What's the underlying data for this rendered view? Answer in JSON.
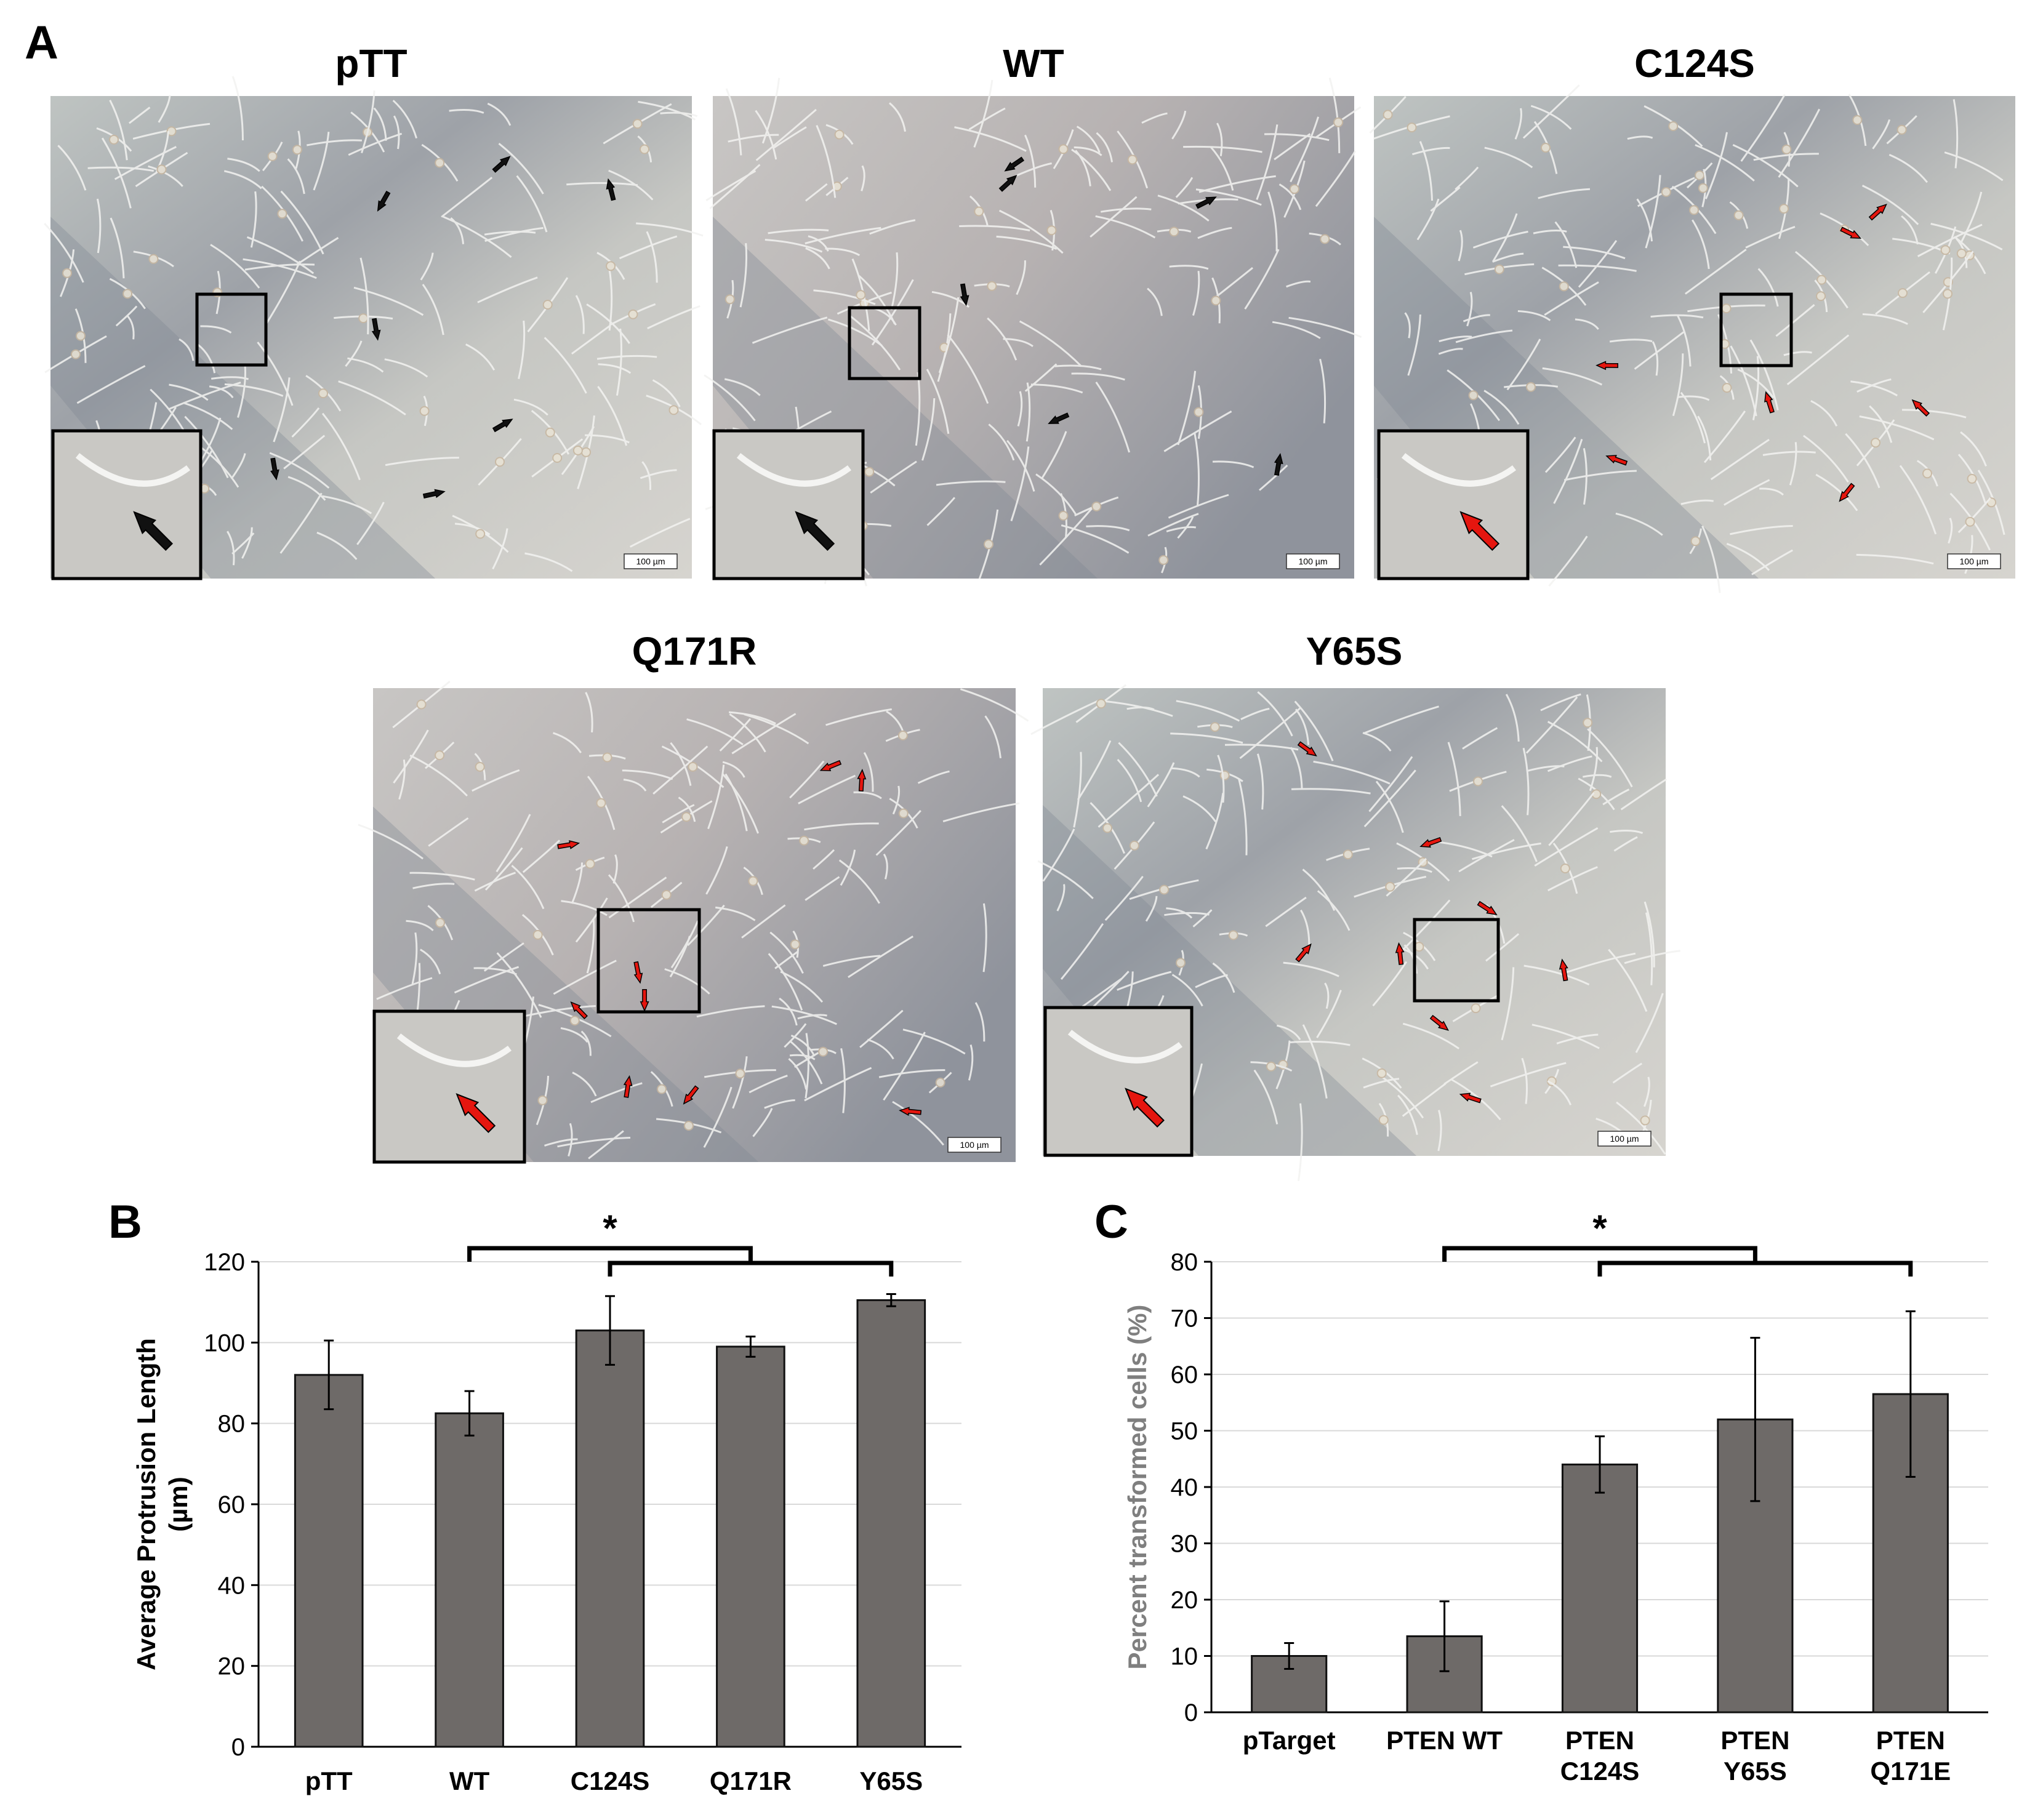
{
  "panel_labels": {
    "a": "A",
    "b": "B",
    "c": "C"
  },
  "colors": {
    "bar_fill": "#6e6a68",
    "bar_stroke": "#111111",
    "grid": "#d9d9d9",
    "black_arrow": "#111111",
    "red_arrow": "#e5160f",
    "micro_bg_light": "#c9cbc8",
    "micro_bg_dark": "#8d9097",
    "axis_title_c": "#7f7f7f"
  },
  "micrographs": [
    {
      "title": "pTT",
      "scale_bar": "100 µm",
      "arrow_color": "black",
      "arrow_count": 7
    },
    {
      "title": "WT",
      "scale_bar": "100 µm",
      "arrow_color": "black",
      "arrow_count": 6
    },
    {
      "title": "C124S",
      "scale_bar": "100 µm",
      "arrow_color": "red",
      "arrow_count": 7
    },
    {
      "title": "Q171R",
      "scale_bar": "100 µm",
      "arrow_color": "red",
      "arrow_count": 9
    },
    {
      "title": "Y65S",
      "scale_bar": "100 µm",
      "arrow_color": "red",
      "arrow_count": 8
    }
  ],
  "chart_data": [
    {
      "panel": "B",
      "type": "bar",
      "title": "",
      "categories": [
        "pTT",
        "WT",
        "C124S",
        "Q171R",
        "Y65S"
      ],
      "values": [
        92,
        82.5,
        103,
        99,
        110.5
      ],
      "errors": [
        8.5,
        5.5,
        8.5,
        2.5,
        1.5
      ],
      "xlabel": "",
      "ylabel": "Average Protrusion Length (µm)",
      "ylabel_lines": [
        "Average Protrusion Length",
        "(µm)"
      ],
      "ylim": [
        0,
        120
      ],
      "yticks": [
        0,
        20,
        40,
        60,
        80,
        100,
        120
      ],
      "grid": true,
      "significance": [
        {
          "from": "WT",
          "to": "Q171R",
          "label": "*"
        },
        {
          "from": "C124S",
          "to": "Y65S",
          "label": ""
        }
      ]
    },
    {
      "panel": "C",
      "type": "bar",
      "title": "",
      "categories": [
        "pTarget",
        "PTEN WT",
        "PTEN C124S",
        "PTEN Y65S",
        "PTEN Q171E"
      ],
      "category_lines": [
        [
          "pTarget"
        ],
        [
          "PTEN WT"
        ],
        [
          "PTEN",
          "C124S"
        ],
        [
          "PTEN",
          "Y65S"
        ],
        [
          "PTEN",
          "Q171E"
        ]
      ],
      "values": [
        10,
        13.5,
        44,
        52,
        56.5
      ],
      "errors": [
        2.3,
        6.2,
        5,
        14.5,
        14.7
      ],
      "xlabel": "",
      "ylabel": "Percent transformed cells (%)",
      "ylim": [
        0,
        80
      ],
      "yticks": [
        0,
        10,
        20,
        30,
        40,
        50,
        60,
        70,
        80
      ],
      "grid": true,
      "significance": [
        {
          "from": "PTEN WT",
          "to": "PTEN Y65S",
          "label": "*"
        },
        {
          "from": "PTEN C124S",
          "to": "PTEN Q171E",
          "label": ""
        }
      ]
    }
  ]
}
